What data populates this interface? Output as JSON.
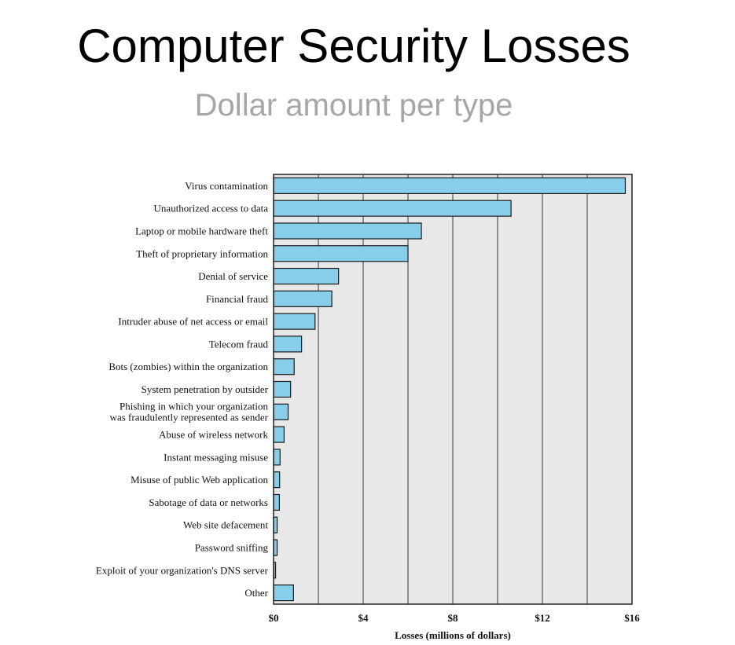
{
  "header": {
    "title": "Computer Security Losses",
    "subtitle": "Dollar amount per type"
  },
  "chart_data": {
    "type": "bar",
    "orientation": "horizontal",
    "categories": [
      "Virus contamination",
      "Unauthorized access to data",
      "Laptop or mobile hardware theft",
      "Theft of proprietary information",
      "Denial of service",
      "Financial fraud",
      "Intruder abuse of net access or email",
      "Telecom fraud",
      "Bots (zombies) within the organization",
      "System penetration by outsider",
      "Phishing in which your organization|was fraudulently represented as sender",
      "Abuse of wireless network",
      "Instant messaging misuse",
      "Misuse of public Web application",
      "Sabotage of data or networks",
      "Web site defacement",
      "Password sniffing",
      "Exploit of your organization's DNS server",
      "Other"
    ],
    "values": [
      15.7,
      10.6,
      6.6,
      6.0,
      2.9,
      2.6,
      1.85,
      1.25,
      0.92,
      0.76,
      0.65,
      0.47,
      0.29,
      0.27,
      0.26,
      0.16,
      0.16,
      0.09,
      0.89
    ],
    "xlim": [
      0,
      16
    ],
    "xticks": [
      0,
      4,
      8,
      12,
      16
    ],
    "xtick_labels": [
      "$0",
      "$4",
      "$8",
      "$12",
      "$16"
    ],
    "gridlines_at": [
      2,
      4,
      6,
      8,
      10,
      12,
      14
    ],
    "xlabel": "Losses (millions of dollars)",
    "ylabel": "",
    "grid": true,
    "colors": {
      "bar": "#87ceeb",
      "bar_stroke": "#1a1a1a",
      "plot_bg": "#e8e8e8",
      "gridline": "#333333"
    }
  }
}
